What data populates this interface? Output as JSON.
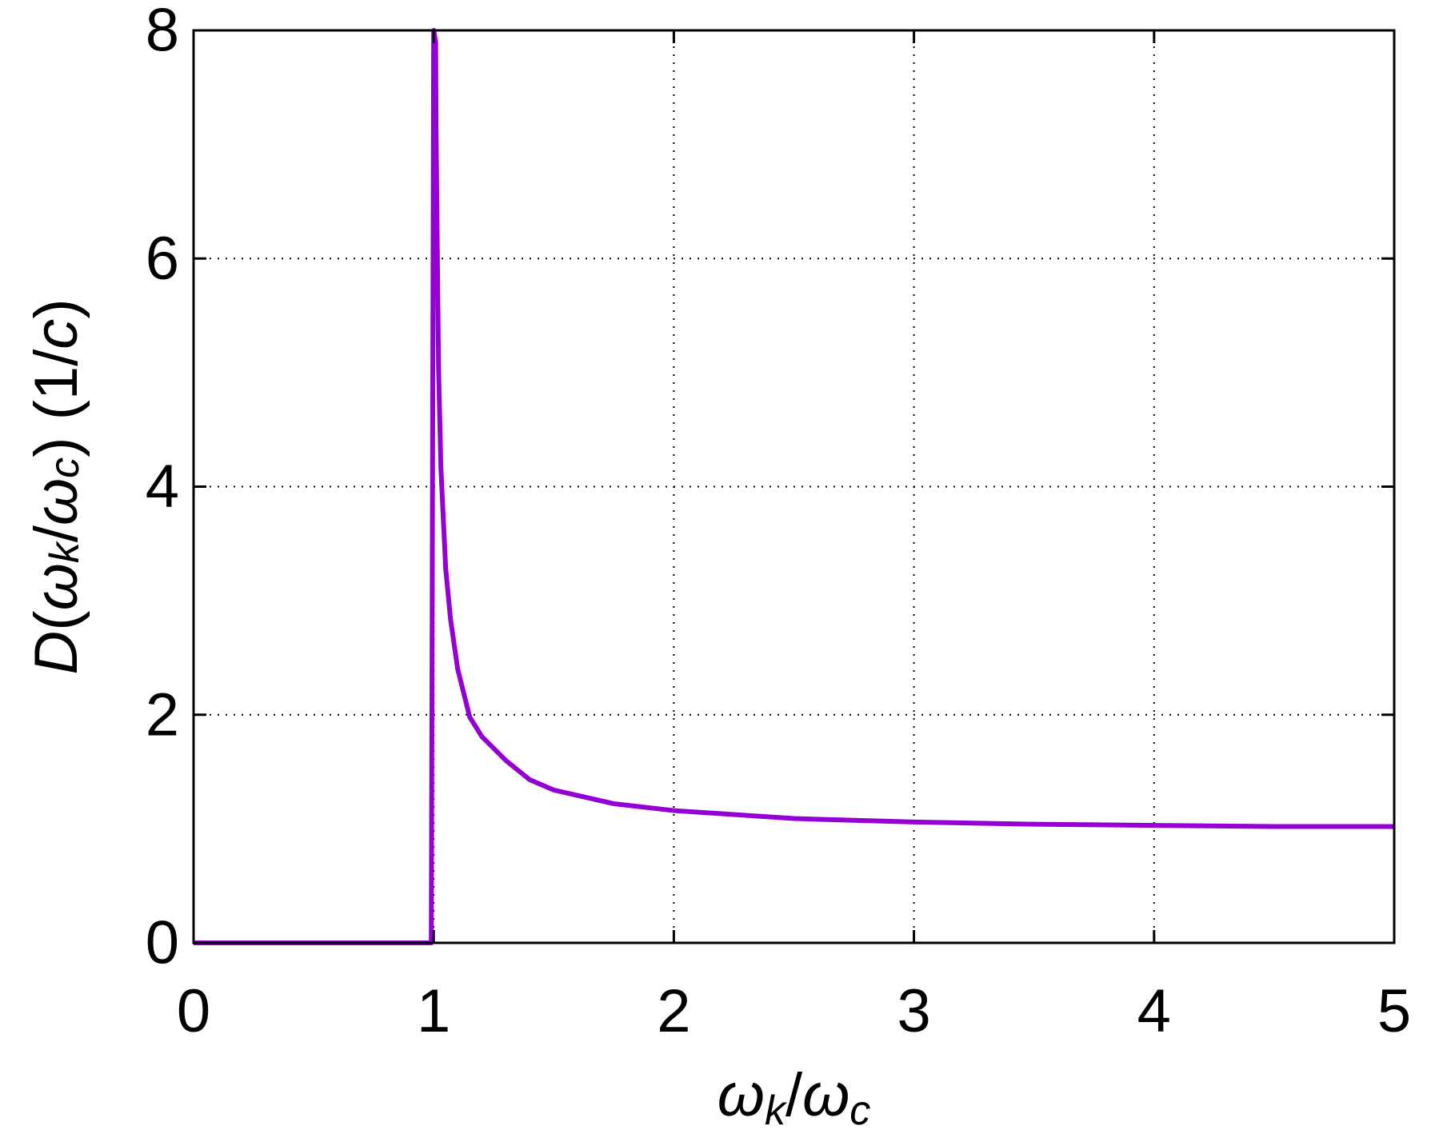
{
  "chart_data": {
    "type": "line",
    "title": "",
    "xlabel": {
      "parts": [
        {
          "text": "ω",
          "italic": true,
          "sub": false
        },
        {
          "text": "k",
          "italic": true,
          "sub": true
        },
        {
          "text": "/",
          "italic": false,
          "sub": false
        },
        {
          "text": "ω",
          "italic": true,
          "sub": false
        },
        {
          "text": "c",
          "italic": true,
          "sub": true
        }
      ]
    },
    "ylabel": {
      "parts": [
        {
          "text": "D",
          "italic": true,
          "sub": false
        },
        {
          "text": "(",
          "italic": false,
          "sub": false
        },
        {
          "text": "ω",
          "italic": true,
          "sub": false
        },
        {
          "text": "k",
          "italic": true,
          "sub": true
        },
        {
          "text": "/",
          "italic": false,
          "sub": false
        },
        {
          "text": "ω",
          "italic": true,
          "sub": false
        },
        {
          "text": "c",
          "italic": true,
          "sub": true
        },
        {
          "text": ") (1/",
          "italic": false,
          "sub": false
        },
        {
          "text": "c",
          "italic": true,
          "sub": false
        },
        {
          "text": ")",
          "italic": false,
          "sub": false
        }
      ]
    },
    "xlim": [
      0,
      5
    ],
    "ylim": [
      0,
      8
    ],
    "xticks": [
      0,
      1,
      2,
      3,
      4,
      5
    ],
    "yticks": [
      0,
      2,
      4,
      6,
      8
    ],
    "xtick_labels": [
      "0",
      "1",
      "2",
      "3",
      "4",
      "5"
    ],
    "ytick_labels": [
      "0",
      "2",
      "4",
      "6",
      "8"
    ],
    "grid": true,
    "legend": "none",
    "series": [
      {
        "color": "#9400D3",
        "x": [
          0,
          0.5,
          0.99,
          1.0,
          1.008,
          1.01,
          1.02,
          1.03,
          1.05,
          1.07,
          1.1,
          1.15,
          1.2,
          1.3,
          1.4,
          1.5,
          1.75,
          2.0,
          2.5,
          3.0,
          3.5,
          4.0,
          4.5,
          5.0
        ],
        "y": [
          0,
          0,
          0,
          8.0,
          7.9,
          7.1,
          5.07,
          4.16,
          3.28,
          2.84,
          2.4,
          1.98,
          1.81,
          1.6,
          1.43,
          1.34,
          1.22,
          1.16,
          1.09,
          1.06,
          1.04,
          1.03,
          1.02,
          1.02
        ]
      }
    ]
  }
}
